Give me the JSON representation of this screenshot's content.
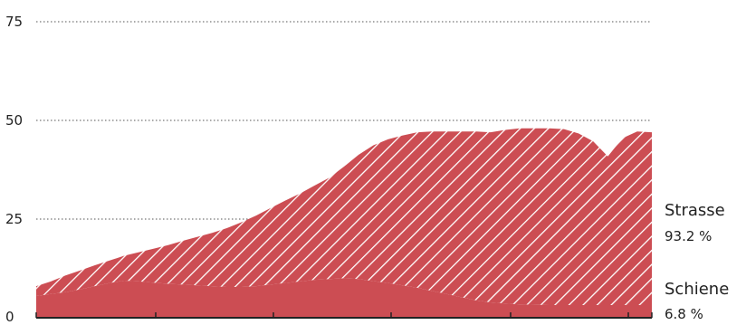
{
  "chart_data": {
    "type": "area",
    "stacked": true,
    "ylim": [
      0,
      75
    ],
    "yticks": [
      "0",
      "25",
      "50",
      "75"
    ],
    "grid": true,
    "colors": {
      "Strasse": "#cc4d53",
      "Schiene": "#cc4d53",
      "hatch": "#ffffff"
    },
    "x": [
      0,
      1,
      2,
      3,
      4,
      5,
      6,
      7,
      8,
      9,
      10,
      11,
      12,
      13,
      14,
      15,
      16,
      17,
      18,
      19,
      20,
      21,
      22,
      23,
      24,
      25,
      26,
      27,
      28,
      29,
      30,
      31,
      32,
      33,
      34,
      35,
      36,
      37,
      38,
      39,
      40,
      41,
      42
    ],
    "series": [
      {
        "name": "Schiene",
        "share_label": "6.8 %",
        "values": [
          5.5,
          6.0,
          6.5,
          7.2,
          8.0,
          8.8,
          9.4,
          9.2,
          8.9,
          8.6,
          8.4,
          8.2,
          8.0,
          7.8,
          7.8,
          8.0,
          8.4,
          8.8,
          9.2,
          9.6,
          9.8,
          10.0,
          9.8,
          9.3,
          8.8,
          8.2,
          7.6,
          6.8,
          6.0,
          5.2,
          4.4,
          3.9,
          3.6,
          3.4,
          3.3,
          3.2,
          3.2,
          3.2,
          3.2,
          3.2,
          3.2,
          3.2,
          3.2
        ]
      },
      {
        "name": "Strasse",
        "share_label": "93.2 %",
        "values": [
          2.5,
          3.2,
          4.2,
          4.8,
          5.3,
          5.7,
          6.3,
          7.4,
          8.6,
          9.8,
          11.1,
          12.3,
          13.5,
          14.9,
          16.4,
          17.9,
          19.4,
          20.9,
          22.3,
          23.9,
          25.7,
          28.3,
          31.5,
          34.4,
          36.4,
          38.0,
          39.4,
          40.4,
          41.2,
          42.0,
          42.8,
          43.1,
          44.0,
          44.6,
          44.7,
          44.8,
          44.6,
          43.5,
          41.5,
          37.7,
          42.3,
          44.0,
          43.8
        ]
      }
    ]
  }
}
